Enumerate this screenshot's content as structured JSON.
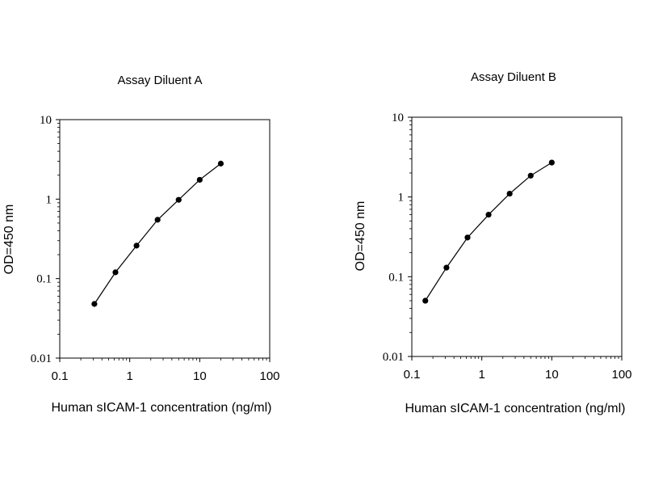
{
  "chart_data": [
    {
      "type": "line",
      "title": "Assay Diluent A",
      "xlabel": "Human sICAM-1 concentration (ng/ml)",
      "ylabel": "OD=450 nm",
      "xscale": "log",
      "yscale": "log",
      "xlim": [
        0.1,
        100
      ],
      "ylim": [
        0.01,
        10
      ],
      "xticks": [
        "0.1",
        "1",
        "10",
        "100"
      ],
      "yticks": [
        "0.01",
        "0.1",
        "1",
        "10"
      ],
      "grid": false,
      "series": [
        {
          "x": [
            0.3125,
            0.625,
            1.25,
            2.5,
            5,
            10,
            20
          ],
          "y": [
            0.048,
            0.12,
            0.26,
            0.55,
            0.98,
            1.75,
            2.8
          ],
          "marker": "circle",
          "color": "#000000"
        }
      ]
    },
    {
      "type": "line",
      "title": "Assay Diluent B",
      "xlabel": "Human sICAM-1 concentration (ng/ml)",
      "ylabel": "OD=450 nm",
      "xscale": "log",
      "yscale": "log",
      "xlim": [
        0.1,
        100
      ],
      "ylim": [
        0.01,
        10
      ],
      "xticks": [
        "0.1",
        "1",
        "10",
        "100"
      ],
      "yticks": [
        "0.01",
        "0.1",
        "1",
        "10"
      ],
      "grid": false,
      "series": [
        {
          "x": [
            0.156,
            0.3125,
            0.625,
            1.25,
            2.5,
            5,
            10
          ],
          "y": [
            0.05,
            0.13,
            0.31,
            0.6,
            1.1,
            1.85,
            2.7
          ],
          "marker": "circle",
          "color": "#000000"
        }
      ]
    }
  ]
}
